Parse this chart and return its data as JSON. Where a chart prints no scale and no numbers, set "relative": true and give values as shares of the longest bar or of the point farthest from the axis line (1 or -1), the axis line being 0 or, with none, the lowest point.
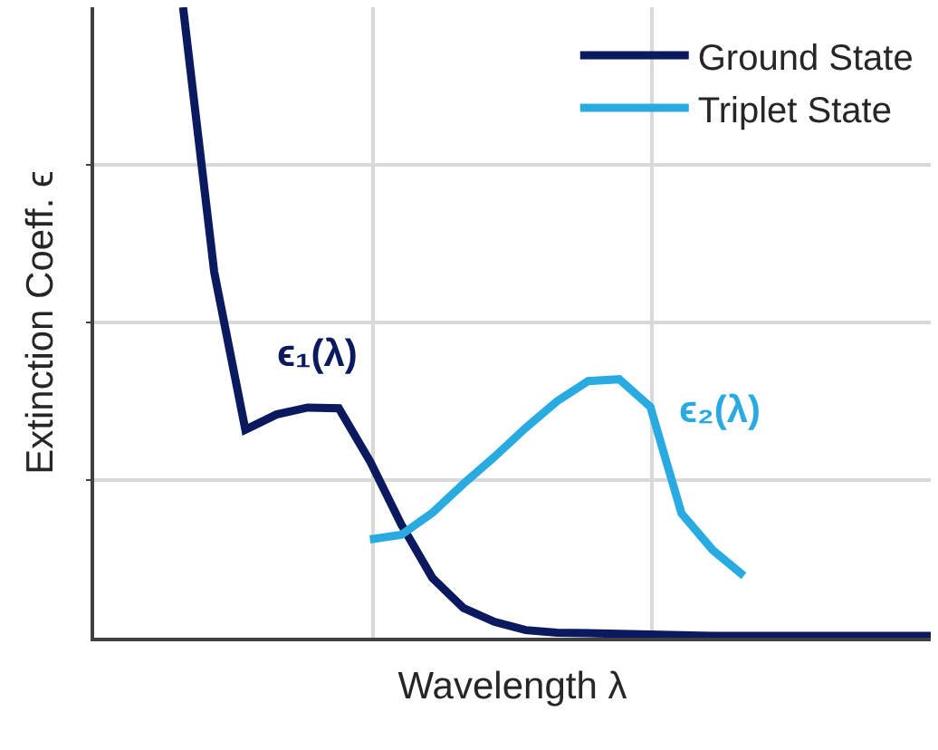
{
  "chart_data": {
    "type": "line",
    "relative": true,
    "xlabel": "Wavelength λ",
    "ylabel": "Extinction Coeff. ϵ",
    "categories": [
      null,
      null,
      null,
      null,
      null,
      null,
      null,
      null,
      null,
      null,
      null,
      null,
      null,
      null,
      null,
      null,
      null,
      null,
      null,
      null,
      null,
      null,
      null,
      null,
      null
    ],
    "tick_labels": false,
    "grid": true,
    "legend": "top right",
    "marker": "none",
    "line_style": "solid",
    "series": [
      {
        "name": "Ground State",
        "color": "#0b1a5e",
        "values": [
          1.0,
          0.58,
          0.33,
          0.354,
          0.365,
          0.364,
          0.28,
          0.18,
          0.095,
          0.047,
          0.025,
          0.012,
          0.008,
          0.007,
          0.006,
          0.005,
          0.004,
          0.003,
          0.003,
          0.003,
          0.003,
          0.003,
          0.003,
          0.003,
          0.003
        ]
      },
      {
        "name": "Triplet State",
        "color": "#29abe2",
        "values": [
          null,
          null,
          null,
          null,
          null,
          null,
          0.156,
          0.163,
          0.198,
          0.244,
          0.287,
          0.333,
          0.375,
          0.407,
          0.41,
          0.366,
          0.197,
          0.139,
          0.098,
          null,
          null,
          null,
          null,
          null,
          null
        ]
      }
    ],
    "annotations": [
      "ϵ₁(λ)",
      "ϵ₂(λ)"
    ]
  }
}
